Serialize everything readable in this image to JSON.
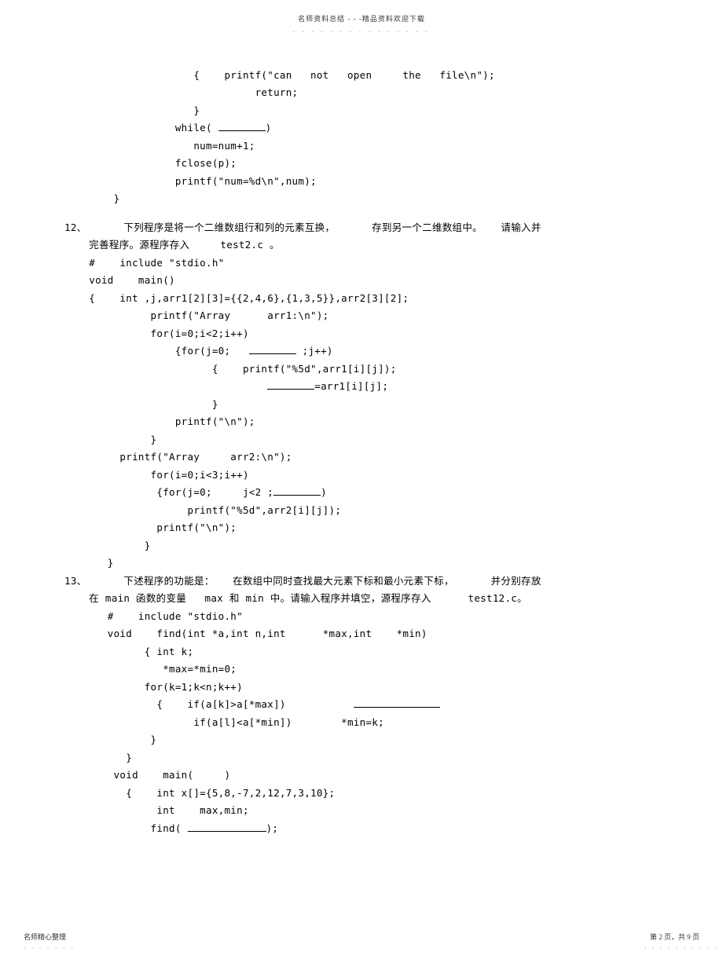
{
  "header": {
    "title": "名师资料总结 - - -精品资料欢迎下载",
    "dots": "- - - - - - - - - - - - - - -"
  },
  "code1": {
    "l1": "                     {    printf(\"can   not   open     the   file\\n\");",
    "l2": "                               return;",
    "l3": "                     }",
    "l4_pre": "                  while( ",
    "l4_post": ")",
    "l5": "                     num=num+1;",
    "l6": "                  fclose(p);",
    "l7": "                  printf(\"num=%d\\n\",num);",
    "l8": "        }"
  },
  "q12": {
    "title_a": "12、      下列程序是将一个二维数组行和列的元素互换，      存到另一个二维数组中。   请输入并",
    "title_b": "    完善程序。源程序存入     test2.c 。",
    "l1": "    #    include \"stdio.h\"",
    "l2": "    void    main()",
    "l3": "    {    int ,j,arr1[2][3]={{2,4,6},{1,3,5}},arr2[3][2];",
    "l4": "              printf(\"Array      arr1:\\n\");",
    "l5": "              for(i=0;i<2;i++)",
    "l6_pre": "                  {for(j=0;   ",
    "l6_post": " ;j++)",
    "l7": "                        {    printf(\"%5d\",arr1[i][j]);",
    "l8_pre": "                                 ",
    "l8_post": "=arr1[i][j];",
    "l9": "                        }",
    "l10": "                  printf(\"\\n\");",
    "l11": "              }",
    "l12": "         printf(\"Array     arr2:\\n\");",
    "l13": "              for(i=0;i<3;i++)",
    "l14_pre": "               {for(j=0;     j<2 ;",
    "l14_post": ")",
    "l15": "                    printf(\"%5d\",arr2[i][j]);",
    "l16": "               printf(\"\\n\");",
    "l17": "             }",
    "l18": "       }"
  },
  "q13": {
    "title_a": "13、      下述程序的功能是：   在数组中同时查找最大元素下标和最小元素下标，      并分别存放",
    "title_b": "    在 main 函数的变量   max 和 min 中。请输入程序并填空，源程序存入      test12.c。",
    "l1": "       #    include \"stdio.h\"",
    "l2": "       void    find(int *a,int n,int      *max,int    *min)",
    "l3": "             { int k;",
    "l4": "                *max=*min=0;",
    "l5": "             for(k=1;k<n;k++)",
    "l6_pre": "               {    if(a[k]>a[*max])           ",
    "l7": "                     if(a[l]<a[*min])        *min=k;",
    "l8": "              }",
    "l9": "          }",
    "l10": "        void    main(     )",
    "l11": "          {    int x[]={5,8,-7,2,12,7,3,10};",
    "l12": "               int    max,min;",
    "l13_pre": "              find( ",
    "l13_post": ");"
  },
  "footer": {
    "left": "名师精心整理",
    "right": "第 2 页，共 9 页",
    "dots_left": "- - - - - - -",
    "dots_right": "- - - - - - - - - -"
  },
  "style": {
    "blank_short": 60,
    "blank_med": 60,
    "blank_long": 110,
    "blank_xlong": 100
  }
}
